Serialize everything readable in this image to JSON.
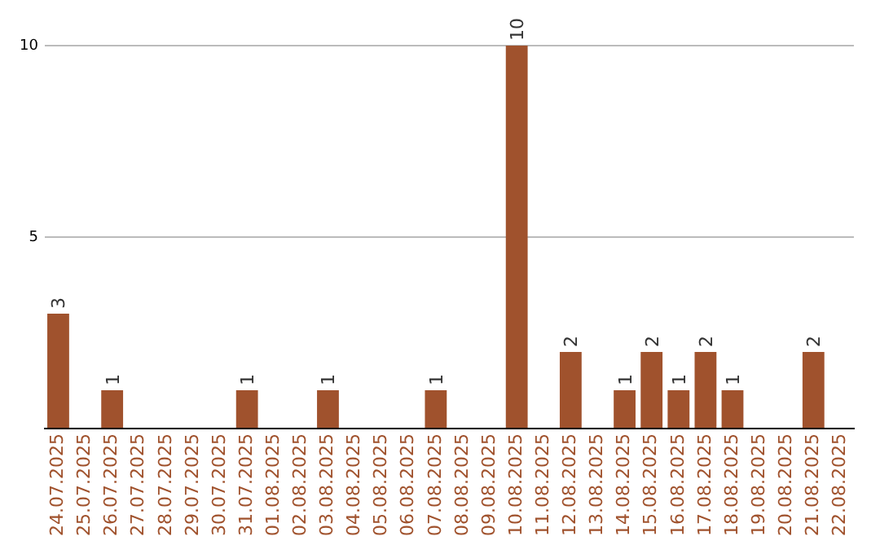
{
  "chart_data": {
    "type": "bar",
    "categories": [
      "24.07.2025",
      "25.07.2025",
      "26.07.2025",
      "27.07.2025",
      "28.07.2025",
      "29.07.2025",
      "30.07.2025",
      "31.07.2025",
      "01.08.2025",
      "02.08.2025",
      "03.08.2025",
      "04.08.2025",
      "05.08.2025",
      "06.08.2025",
      "07.08.2025",
      "08.08.2025",
      "09.08.2025",
      "10.08.2025",
      "11.08.2025",
      "12.08.2025",
      "13.08.2025",
      "14.08.2025",
      "15.08.2025",
      "16.08.2025",
      "17.08.2025",
      "18.08.2025",
      "19.08.2025",
      "20.08.2025",
      "21.08.2025",
      "22.08.2025"
    ],
    "values": [
      3,
      0,
      1,
      0,
      0,
      0,
      0,
      1,
      0,
      0,
      1,
      0,
      0,
      0,
      1,
      0,
      0,
      10,
      0,
      2,
      0,
      1,
      2,
      1,
      2,
      1,
      0,
      0,
      2,
      0
    ],
    "value_labels": [
      "3",
      null,
      "1",
      null,
      null,
      null,
      null,
      "1",
      null,
      null,
      "1",
      null,
      null,
      null,
      "1",
      null,
      null,
      "10",
      null,
      "2",
      null,
      "1",
      "2",
      "1",
      "2",
      "1",
      null,
      null,
      "2",
      null
    ],
    "color": "#a0522d",
    "ylim": [
      0,
      10
    ],
    "yticks": [
      {
        "value": 0,
        "label": null
      },
      5,
      10
    ],
    "grid": "y",
    "legend": false
  }
}
